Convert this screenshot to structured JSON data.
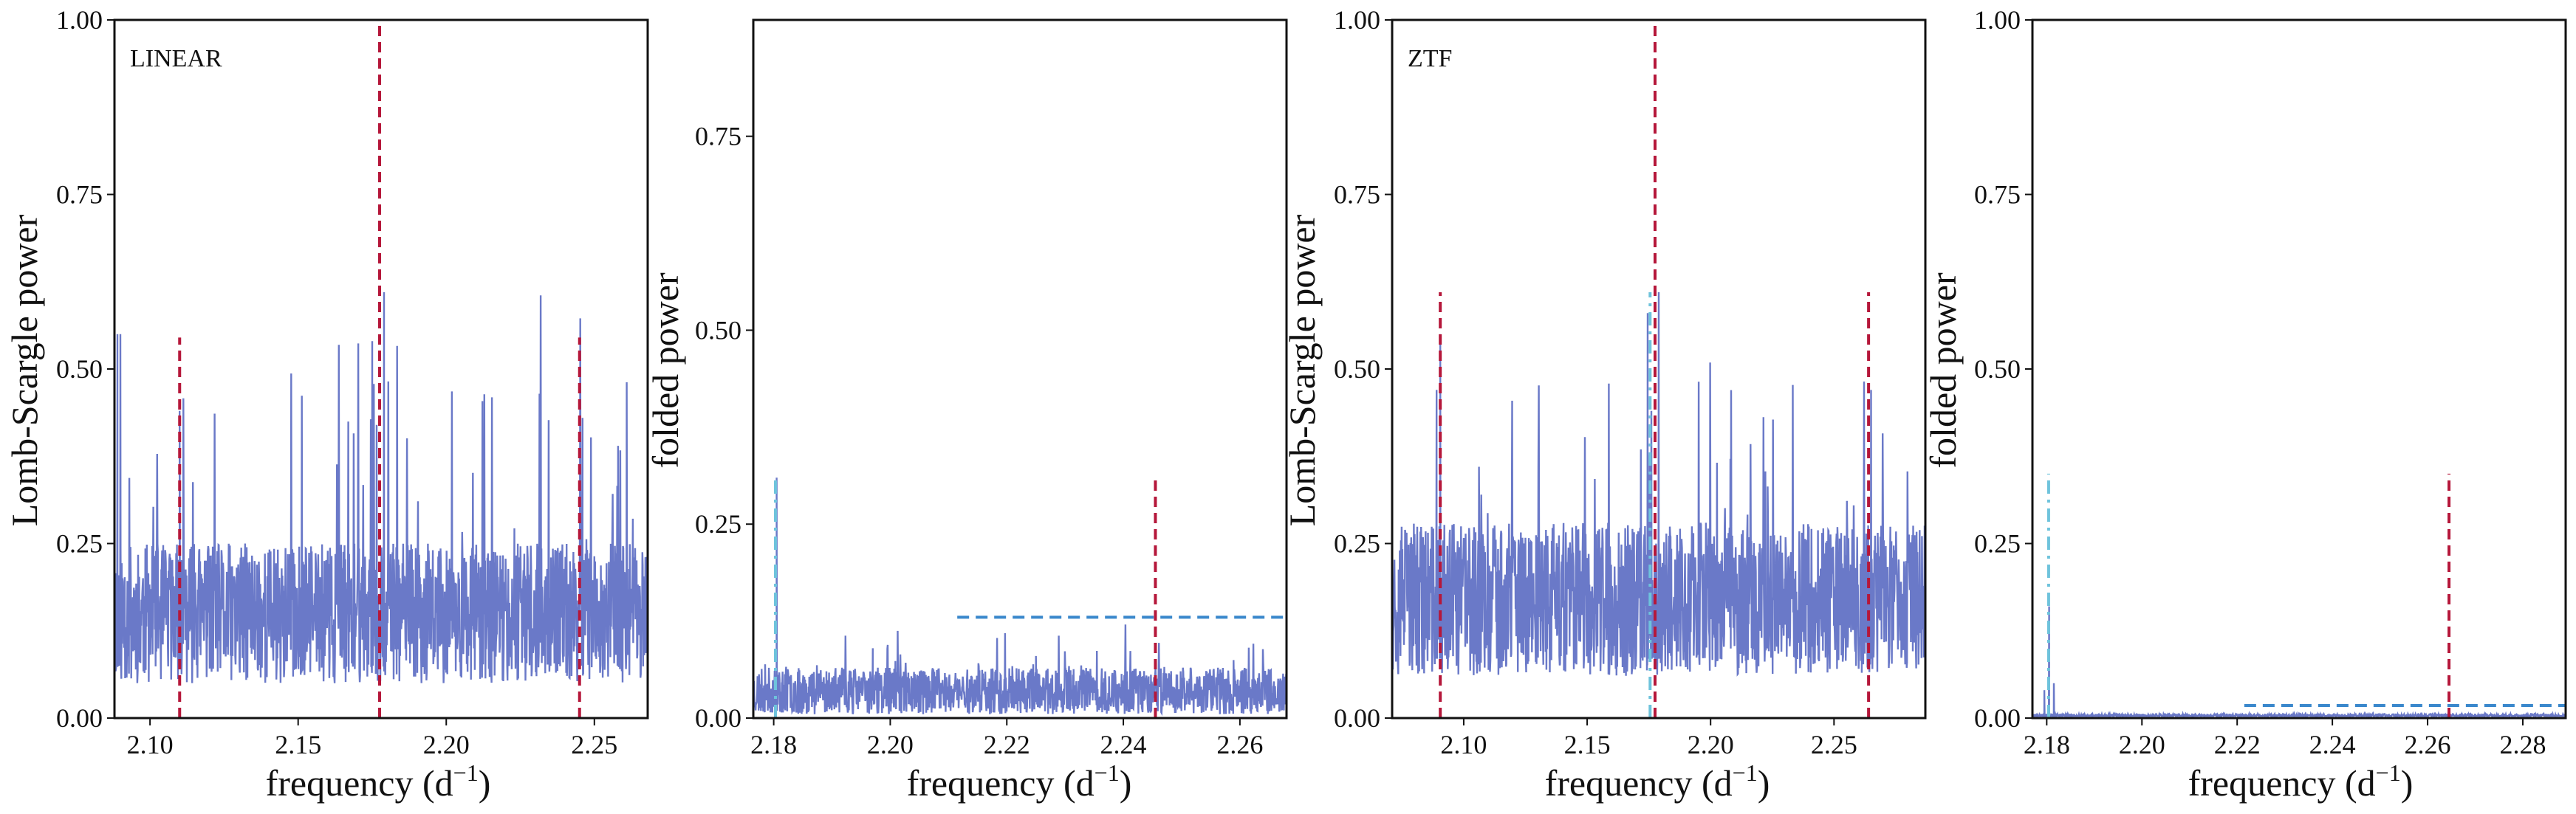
{
  "colors": {
    "series": "#6a79c8",
    "red_marker": "#b5173a",
    "cyan_marker": "#6ec3dc",
    "blue_threshold": "#3a88cc",
    "axes": "#111111"
  },
  "chart_data": [
    {
      "type": "line",
      "panel_label": "LINEAR",
      "xlabel": "frequency (d$^{-1}$)",
      "xlabel_text": "frequency (d",
      "xlabel_sup": "−1",
      "xlabel_tail": ")",
      "ylabel": "Lomb-Scargle power",
      "xlim": [
        2.088,
        2.268
      ],
      "ylim": [
        0,
        1
      ],
      "xticks": [
        2.1,
        2.15,
        2.2,
        2.25
      ],
      "xtick_labels": [
        "2.10",
        "2.15",
        "2.20",
        "2.25"
      ],
      "yticks": [
        0,
        0.25,
        0.5,
        0.75,
        1.0
      ],
      "ytick_labels": [
        "0.00",
        "0.25",
        "0.50",
        "0.75",
        "1.00"
      ],
      "series": [
        {
          "kind": "noisy_periodogram",
          "baseline": 0.15,
          "noise": 0.1,
          "spikes_per_unit": 20,
          "spike_height": 0.38,
          "seed": 11,
          "peaks": [
            {
              "x": 2.089,
              "y": 0.55
            },
            {
              "x": 2.09,
              "y": 0.55
            },
            {
              "x": 2.11,
              "y": 0.44
            },
            {
              "x": 2.175,
              "y": 0.54
            },
            {
              "x": 2.1765,
              "y": 0.42
            },
            {
              "x": 2.179,
              "y": 0.61
            },
            {
              "x": 2.246,
              "y": 0.43
            },
            {
              "x": 2.258,
              "y": 0.39
            }
          ]
        }
      ],
      "markers": [
        {
          "style": "red_dashed",
          "x": 2.11,
          "y0": 0,
          "y1": 0.545
        },
        {
          "style": "red_dashed",
          "x": 2.1775,
          "y0": 0,
          "y1": 1.0
        },
        {
          "style": "red_dashed",
          "x": 2.245,
          "y0": 0,
          "y1": 0.545
        }
      ],
      "grid": false
    },
    {
      "type": "line",
      "xlabel_text": "frequency (d",
      "xlabel_sup": "−1",
      "xlabel_tail": ")",
      "ylabel": "folded power",
      "xlim": [
        2.1765,
        2.268
      ],
      "ylim": [
        0,
        0.9
      ],
      "xticks": [
        2.18,
        2.2,
        2.22,
        2.24,
        2.26
      ],
      "xtick_labels": [
        "2.18",
        "2.20",
        "2.22",
        "2.24",
        "2.26"
      ],
      "yticks": [
        0,
        0.25,
        0.5,
        0.75
      ],
      "ytick_labels": [
        "0.00",
        "0.25",
        "0.50",
        "0.75"
      ],
      "series": [
        {
          "kind": "noisy_periodogram",
          "baseline": 0.035,
          "noise": 0.03,
          "spikes_per_unit": 40,
          "spike_height": 0.06,
          "seed": 23,
          "peaks": [
            {
              "x": 2.1805,
              "y": 0.31
            },
            {
              "x": 2.197,
              "y": 0.09
            },
            {
              "x": 2.225,
              "y": 0.08
            }
          ]
        }
      ],
      "markers": [
        {
          "style": "cyan_dashdot",
          "x": 2.1803,
          "y0": 0,
          "y1": 0.31
        },
        {
          "style": "red_dashed",
          "x": 2.2455,
          "y0": 0,
          "y1": 0.31
        },
        {
          "style": "blue_dashed_h",
          "x0": 2.2115,
          "x1": 2.268,
          "y": 0.13
        }
      ],
      "grid": false
    },
    {
      "type": "line",
      "panel_label": "ZTF",
      "xlabel_text": "frequency (d",
      "xlabel_sup": "−1",
      "xlabel_tail": ")",
      "ylabel": "Lomb-Scargle power",
      "xlim": [
        2.071,
        2.287
      ],
      "ylim": [
        0,
        1
      ],
      "xticks": [
        2.1,
        2.15,
        2.2,
        2.25
      ],
      "xtick_labels": [
        "2.10",
        "2.15",
        "2.20",
        "2.25"
      ],
      "yticks": [
        0,
        0.25,
        0.5,
        0.75,
        1.0
      ],
      "ytick_labels": [
        "0.00",
        "0.25",
        "0.50",
        "0.75",
        "1.00"
      ],
      "series": [
        {
          "kind": "noisy_periodogram",
          "baseline": 0.17,
          "noise": 0.11,
          "spikes_per_unit": 20,
          "spike_height": 0.36,
          "seed": 37,
          "peaks": [
            {
              "x": 2.0905,
              "y": 0.55
            },
            {
              "x": 2.089,
              "y": 0.47
            },
            {
              "x": 2.1745,
              "y": 0.58
            },
            {
              "x": 2.176,
              "y": 0.44
            },
            {
              "x": 2.179,
              "y": 0.61
            },
            {
              "x": 2.265,
              "y": 0.47
            }
          ]
        }
      ],
      "markers": [
        {
          "style": "red_dashed",
          "x": 2.0905,
          "y0": 0,
          "y1": 0.61
        },
        {
          "style": "cyan_dashdot",
          "x": 2.1755,
          "y0": 0,
          "y1": 0.61
        },
        {
          "style": "red_dashed",
          "x": 2.1775,
          "y0": 0,
          "y1": 1.0
        },
        {
          "style": "red_dashed",
          "x": 2.264,
          "y0": 0,
          "y1": 0.61
        }
      ],
      "grid": false
    },
    {
      "type": "line",
      "xlabel_text": "frequency (d",
      "xlabel_sup": "−1",
      "xlabel_tail": ")",
      "ylabel": "folded power",
      "xlim": [
        2.177,
        2.289
      ],
      "ylim": [
        0,
        1
      ],
      "xticks": [
        2.18,
        2.2,
        2.22,
        2.24,
        2.26,
        2.28
      ],
      "xtick_labels": [
        "2.18",
        "2.20",
        "2.22",
        "2.24",
        "2.26",
        "2.28"
      ],
      "yticks": [
        0,
        0.25,
        0.5,
        0.75,
        1.0
      ],
      "ytick_labels": [
        "0.00",
        "0.25",
        "0.50",
        "0.75",
        "1.00"
      ],
      "series": [
        {
          "kind": "noisy_periodogram",
          "baseline": 0.003,
          "noise": 0.003,
          "spikes_per_unit": 10,
          "spike_height": 0.004,
          "seed": 51,
          "peaks": [
            {
              "x": 2.1805,
              "y": 0.16
            },
            {
              "x": 2.1795,
              "y": 0.04
            },
            {
              "x": 2.1815,
              "y": 0.05
            }
          ]
        }
      ],
      "markers": [
        {
          "style": "cyan_dashdot",
          "x": 2.1804,
          "y0": 0,
          "y1": 0.35
        },
        {
          "style": "red_dashed",
          "x": 2.2645,
          "y0": 0,
          "y1": 0.35
        },
        {
          "style": "blue_dashed_h",
          "x0": 2.2215,
          "x1": 2.289,
          "y": 0.018
        }
      ],
      "grid": false
    }
  ]
}
